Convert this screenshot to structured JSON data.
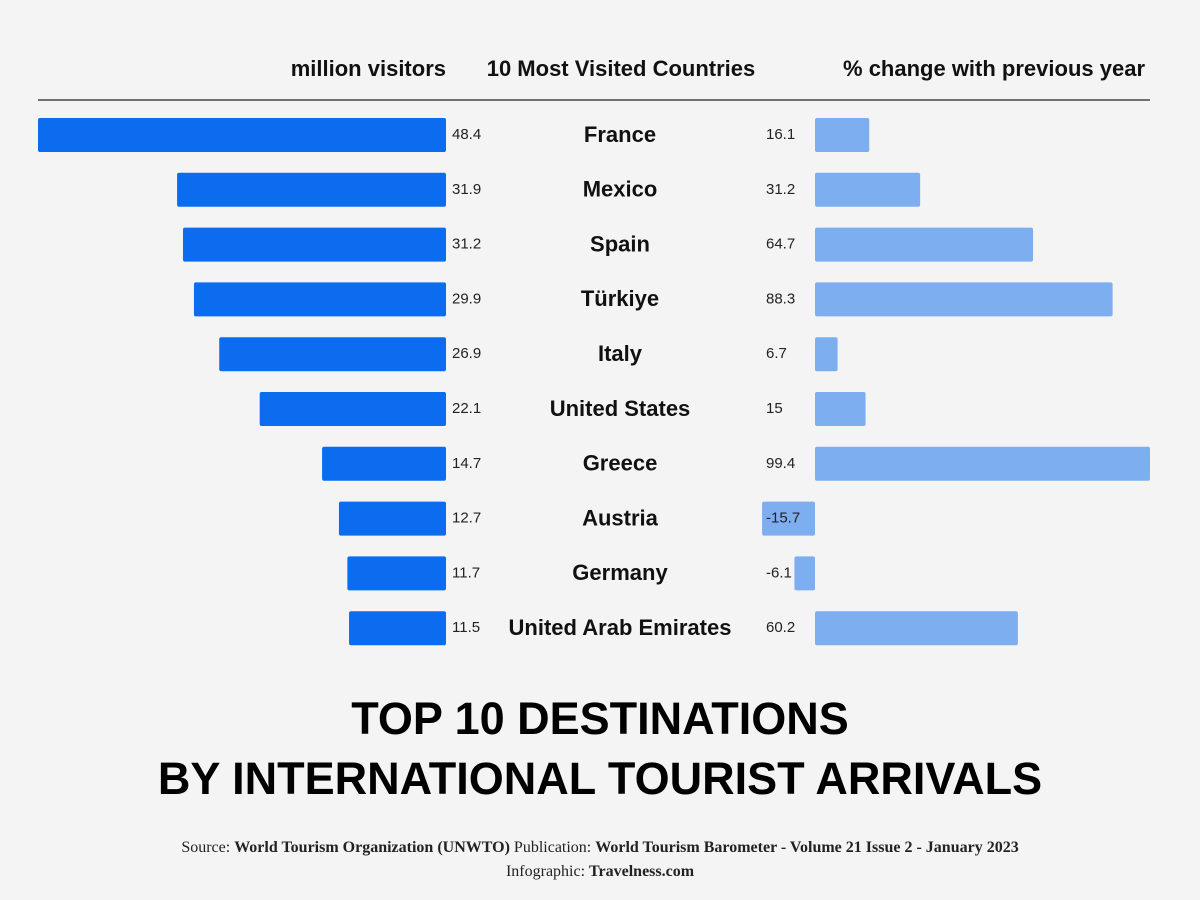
{
  "chart_data": {
    "type": "butterfly",
    "title": [
      "TOP 10 DESTINATIONS",
      "BY INTERNATIONAL TOURIST ARRIVALS"
    ],
    "category_label": "10 Most Visited Countries",
    "categories": [
      "France",
      "Mexico",
      "Spain",
      "Türkiye",
      "Italy",
      "United States",
      "Greece",
      "Austria",
      "Germany",
      "United Arab Emirates"
    ],
    "series": [
      {
        "name": "million visitors",
        "color": "#0b6cf0",
        "side": "left",
        "values": [
          48.4,
          31.9,
          31.2,
          29.9,
          26.9,
          22.1,
          14.7,
          12.7,
          11.7,
          11.5
        ]
      },
      {
        "name": "% change with previous year",
        "color": "#7daef0",
        "side": "right",
        "values": [
          16.1,
          31.2,
          64.7,
          88.3,
          6.7,
          15,
          99.4,
          -15.7,
          -6.1,
          60.2
        ]
      }
    ]
  },
  "footer": {
    "source_label": "Source:",
    "source": "World Tourism Organization (UNWTO)",
    "publication_label": "Publication:",
    "publication": "World Tourism Barometer - Volume 21 Issue 2 - January 2023",
    "infographic_label": "Infographic:",
    "infographic": "Travelness.com"
  }
}
